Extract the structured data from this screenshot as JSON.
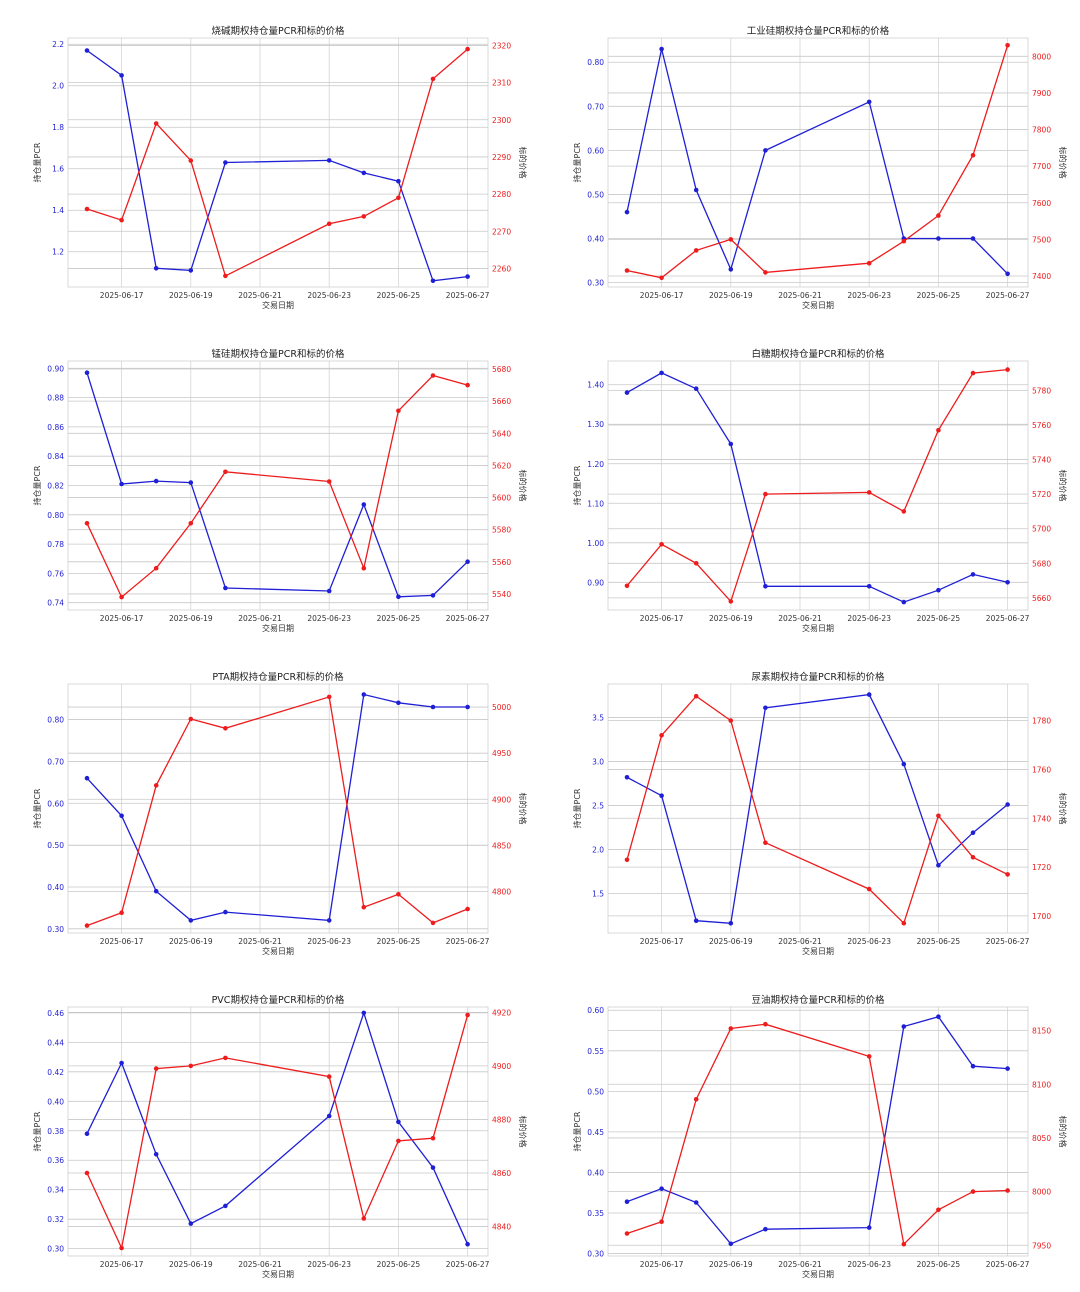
{
  "chart_data": [
    {
      "type": "line",
      "title": "烧碱期权持仓量PCR和标的价格",
      "xlabel": "交易日期",
      "ylabel_left": "持仓量PCR",
      "ylabel_right": "标的价格",
      "x_ticks": [
        "2025-06-17",
        "2025-06-19",
        "2025-06-21",
        "2025-06-23",
        "2025-06-25",
        "2025-06-27"
      ],
      "x": [
        "2025-06-16",
        "2025-06-17",
        "2025-06-18",
        "2025-06-19",
        "2025-06-20",
        "2025-06-23",
        "2025-06-24",
        "2025-06-25",
        "2025-06-26",
        "2025-06-27"
      ],
      "left_ylim": [
        1.03,
        2.23
      ],
      "left_ticks": [
        1.2,
        1.4,
        1.6,
        1.8,
        2.0,
        2.2
      ],
      "right_ylim": [
        2255,
        2322
      ],
      "right_ticks": [
        2260,
        2270,
        2280,
        2290,
        2300,
        2310,
        2320
      ],
      "series": [
        {
          "axis": "left",
          "color": "#1f1fd6",
          "values": [
            2.17,
            2.05,
            1.12,
            1.11,
            1.63,
            1.64,
            1.58,
            1.54,
            1.06,
            1.08
          ]
        },
        {
          "axis": "right",
          "color": "#ee1c1c",
          "values": [
            2276,
            2273,
            2299,
            2289,
            2258,
            2272,
            2274,
            2279,
            2311,
            2319
          ]
        }
      ]
    },
    {
      "type": "line",
      "title": "工业硅期权持仓量PCR和标的价格",
      "xlabel": "交易日期",
      "ylabel_left": "持仓量PCR",
      "ylabel_right": "标的价格",
      "x_ticks": [
        "2025-06-17",
        "2025-06-19",
        "2025-06-21",
        "2025-06-23",
        "2025-06-25",
        "2025-06-27"
      ],
      "x": [
        "2025-06-16",
        "2025-06-17",
        "2025-06-18",
        "2025-06-19",
        "2025-06-20",
        "2025-06-23",
        "2025-06-24",
        "2025-06-25",
        "2025-06-26",
        "2025-06-27"
      ],
      "left_ylim": [
        0.29,
        0.855
      ],
      "left_ticks": [
        0.3,
        0.4,
        0.5,
        0.6,
        0.7,
        0.8
      ],
      "right_ylim": [
        7370,
        8050
      ],
      "right_ticks": [
        7400,
        7500,
        7600,
        7700,
        7800,
        7900,
        8000
      ],
      "series": [
        {
          "axis": "left",
          "color": "#1f1fd6",
          "values": [
            0.46,
            0.83,
            0.51,
            0.33,
            0.6,
            0.71,
            0.4,
            0.4,
            0.4,
            0.32
          ]
        },
        {
          "axis": "right",
          "color": "#ee1c1c",
          "values": [
            7415,
            7395,
            7470,
            7500,
            7410,
            7435,
            7495,
            7565,
            7730,
            8030
          ]
        }
      ]
    },
    {
      "type": "line",
      "title": "锰硅期权持仓量PCR和标的价格",
      "xlabel": "交易日期",
      "ylabel_left": "持仓量PCR",
      "ylabel_right": "标的价格",
      "x_ticks": [
        "2025-06-17",
        "2025-06-19",
        "2025-06-21",
        "2025-06-23",
        "2025-06-25",
        "2025-06-27"
      ],
      "x": [
        "2025-06-16",
        "2025-06-17",
        "2025-06-18",
        "2025-06-19",
        "2025-06-20",
        "2025-06-23",
        "2025-06-24",
        "2025-06-25",
        "2025-06-26",
        "2025-06-27"
      ],
      "left_ylim": [
        0.735,
        0.905
      ],
      "left_ticks": [
        0.74,
        0.76,
        0.78,
        0.8,
        0.82,
        0.84,
        0.86,
        0.88,
        0.9
      ],
      "right_ylim": [
        5530,
        5685
      ],
      "right_ticks": [
        5540,
        5560,
        5580,
        5600,
        5620,
        5640,
        5660,
        5680
      ],
      "series": [
        {
          "axis": "left",
          "color": "#1f1fd6",
          "values": [
            0.897,
            0.821,
            0.823,
            0.822,
            0.75,
            0.748,
            0.807,
            0.744,
            0.745,
            0.768
          ]
        },
        {
          "axis": "right",
          "color": "#ee1c1c",
          "values": [
            5584,
            5538,
            5556,
            5584,
            5616,
            5610,
            5556,
            5654,
            5676,
            5670
          ]
        }
      ]
    },
    {
      "type": "line",
      "title": "白糖期权持仓量PCR和标的价格",
      "xlabel": "交易日期",
      "ylabel_left": "持仓量PCR",
      "ylabel_right": "标的价格",
      "x_ticks": [
        "2025-06-17",
        "2025-06-19",
        "2025-06-21",
        "2025-06-23",
        "2025-06-25",
        "2025-06-27"
      ],
      "x": [
        "2025-06-16",
        "2025-06-17",
        "2025-06-18",
        "2025-06-19",
        "2025-06-20",
        "2025-06-23",
        "2025-06-24",
        "2025-06-25",
        "2025-06-26",
        "2025-06-27"
      ],
      "left_ylim": [
        0.83,
        1.46
      ],
      "left_ticks": [
        0.9,
        1.0,
        1.1,
        1.2,
        1.3,
        1.4
      ],
      "right_ylim": [
        5653,
        5797
      ],
      "right_ticks": [
        5660,
        5680,
        5700,
        5720,
        5740,
        5760,
        5780
      ],
      "series": [
        {
          "axis": "left",
          "color": "#1f1fd6",
          "values": [
            1.38,
            1.43,
            1.39,
            1.25,
            0.89,
            0.89,
            0.85,
            0.88,
            0.92,
            0.9
          ]
        },
        {
          "axis": "right",
          "color": "#ee1c1c",
          "values": [
            5667,
            5691,
            5680,
            5658,
            5720,
            5721,
            5710,
            5757,
            5790,
            5792
          ]
        }
      ]
    },
    {
      "type": "line",
      "title": "PTA期权持仓量PCR和标的价格",
      "xlabel": "交易日期",
      "ylabel_left": "持仓量PCR",
      "ylabel_right": "标的价格",
      "x_ticks": [
        "2025-06-17",
        "2025-06-19",
        "2025-06-21",
        "2025-06-23",
        "2025-06-25",
        "2025-06-27"
      ],
      "x": [
        "2025-06-16",
        "2025-06-17",
        "2025-06-18",
        "2025-06-19",
        "2025-06-20",
        "2025-06-23",
        "2025-06-24",
        "2025-06-25",
        "2025-06-26",
        "2025-06-27"
      ],
      "left_ylim": [
        0.29,
        0.885
      ],
      "left_ticks": [
        0.3,
        0.4,
        0.5,
        0.6,
        0.7,
        0.8
      ],
      "right_ylim": [
        4755,
        5025
      ],
      "right_ticks": [
        4800,
        4850,
        4900,
        4950,
        5000
      ],
      "series": [
        {
          "axis": "left",
          "color": "#1f1fd6",
          "values": [
            0.66,
            0.57,
            0.39,
            0.32,
            0.34,
            0.32,
            0.86,
            0.84,
            0.83,
            0.83
          ]
        },
        {
          "axis": "right",
          "color": "#ee1c1c",
          "values": [
            4763,
            4777,
            4915,
            4987,
            4977,
            5011,
            4783,
            4797,
            4766,
            4781
          ]
        }
      ]
    },
    {
      "type": "line",
      "title": "尿素期权持仓量PCR和标的价格",
      "xlabel": "交易日期",
      "ylabel_left": "持仓量PCR",
      "ylabel_right": "标的价格",
      "x_ticks": [
        "2025-06-17",
        "2025-06-19",
        "2025-06-21",
        "2025-06-23",
        "2025-06-25",
        "2025-06-27"
      ],
      "x": [
        "2025-06-16",
        "2025-06-17",
        "2025-06-18",
        "2025-06-19",
        "2025-06-20",
        "2025-06-23",
        "2025-06-24",
        "2025-06-25",
        "2025-06-26",
        "2025-06-27"
      ],
      "left_ylim": [
        1.05,
        3.88
      ],
      "left_ticks": [
        1.5,
        2.0,
        2.5,
        3.0,
        3.5
      ],
      "right_ylim": [
        1693,
        1795
      ],
      "right_ticks": [
        1700,
        1720,
        1740,
        1760,
        1780
      ],
      "series": [
        {
          "axis": "left",
          "color": "#1f1fd6",
          "values": [
            2.82,
            2.61,
            1.19,
            1.16,
            3.61,
            3.76,
            2.97,
            1.82,
            2.19,
            2.51
          ]
        },
        {
          "axis": "right",
          "color": "#ee1c1c",
          "values": [
            1723,
            1774,
            1790,
            1780,
            1730,
            1711,
            1697,
            1741,
            1724,
            1717
          ]
        }
      ]
    },
    {
      "type": "line",
      "title": "PVC期权持仓量PCR和标的价格",
      "xlabel": "交易日期",
      "ylabel_left": "持仓量PCR",
      "ylabel_right": "标的价格",
      "x_ticks": [
        "2025-06-17",
        "2025-06-19",
        "2025-06-21",
        "2025-06-23",
        "2025-06-25",
        "2025-06-27"
      ],
      "x": [
        "2025-06-16",
        "2025-06-17",
        "2025-06-18",
        "2025-06-19",
        "2025-06-20",
        "2025-06-23",
        "2025-06-24",
        "2025-06-25",
        "2025-06-26",
        "2025-06-27"
      ],
      "left_ylim": [
        0.295,
        0.464
      ],
      "left_ticks": [
        0.3,
        0.32,
        0.34,
        0.36,
        0.38,
        0.4,
        0.42,
        0.44,
        0.46
      ],
      "right_ylim": [
        4829,
        4922
      ],
      "right_ticks": [
        4840,
        4860,
        4880,
        4900,
        4920
      ],
      "series": [
        {
          "axis": "left",
          "color": "#1f1fd6",
          "values": [
            0.378,
            0.426,
            0.364,
            0.317,
            0.329,
            0.39,
            0.46,
            0.386,
            0.355,
            0.303
          ]
        },
        {
          "axis": "right",
          "color": "#ee1c1c",
          "values": [
            4860,
            4832,
            4899,
            4900,
            4903,
            4896,
            4843,
            4872,
            4873,
            4919
          ]
        }
      ]
    },
    {
      "type": "line",
      "title": "豆油期权持仓量PCR和标的价格",
      "xlabel": "交易日期",
      "ylabel_left": "持仓量PCR",
      "ylabel_right": "标的价格",
      "x_ticks": [
        "2025-06-17",
        "2025-06-19",
        "2025-06-21",
        "2025-06-23",
        "2025-06-25",
        "2025-06-27"
      ],
      "x": [
        "2025-06-16",
        "2025-06-17",
        "2025-06-18",
        "2025-06-19",
        "2025-06-20",
        "2025-06-23",
        "2025-06-24",
        "2025-06-25",
        "2025-06-26",
        "2025-06-27"
      ],
      "left_ylim": [
        0.297,
        0.604
      ],
      "left_ticks": [
        0.3,
        0.35,
        0.4,
        0.45,
        0.5,
        0.55,
        0.6
      ],
      "right_ylim": [
        7940,
        8172
      ],
      "right_ticks": [
        7950,
        8000,
        8050,
        8100,
        8150
      ],
      "series": [
        {
          "axis": "left",
          "color": "#1f1fd6",
          "values": [
            0.364,
            0.38,
            0.363,
            0.312,
            0.33,
            0.332,
            0.58,
            0.592,
            0.531,
            0.528
          ]
        },
        {
          "axis": "right",
          "color": "#ee1c1c",
          "values": [
            7961,
            7972,
            8086,
            8152,
            8156,
            8126,
            7951,
            7983,
            8000,
            8001
          ]
        }
      ]
    }
  ]
}
